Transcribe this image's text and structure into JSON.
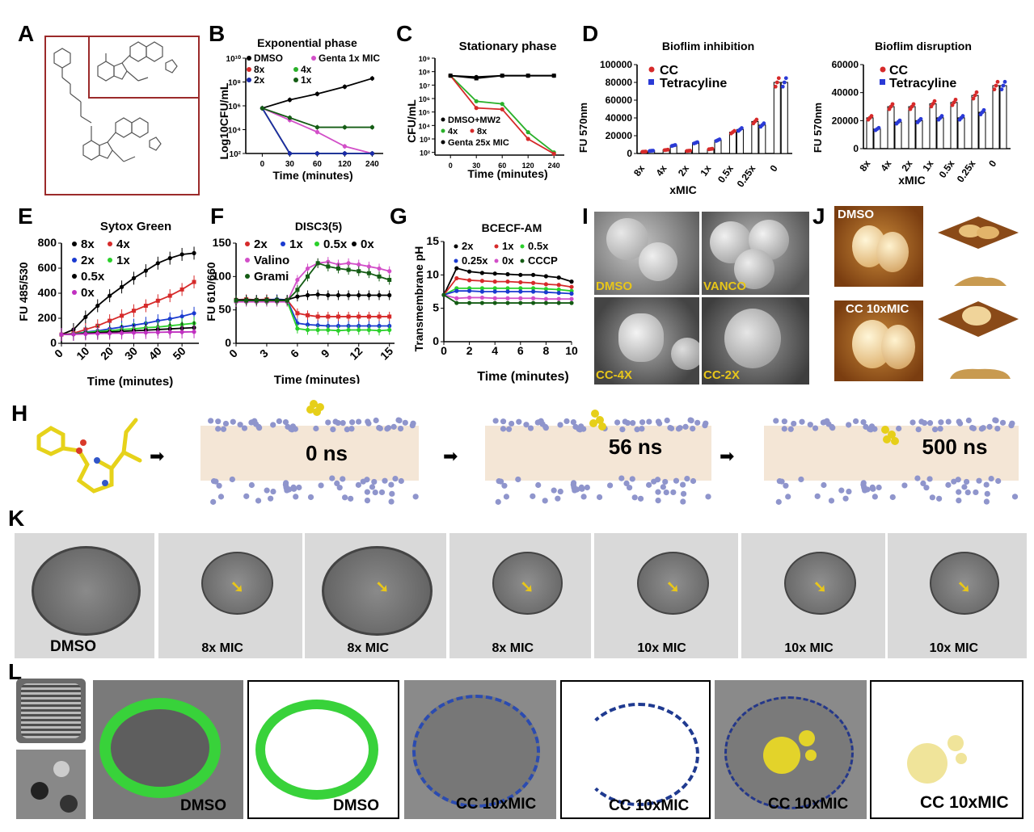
{
  "panels": {
    "A": "A",
    "B": "B",
    "C": "C",
    "D": "D",
    "E": "E",
    "F": "F",
    "G": "G",
    "H": "H",
    "I": "I",
    "J": "J",
    "K": "K",
    "L": "L"
  },
  "panelB": {
    "title": "Exponential phase",
    "ylabel": "Log10CFU/mL",
    "xlabel": "Time  (minutes)",
    "yticks": [
      "10¹⁰",
      "10⁸",
      "10⁶",
      "10⁴",
      "10²"
    ],
    "xticks": [
      "0",
      "30",
      "60",
      "120",
      "240"
    ],
    "legend": [
      "DMSO",
      "Genta 1x MIC",
      "8x",
      "4x",
      "2x",
      "1x"
    ]
  },
  "panelC": {
    "title": "Stationary phase",
    "ylabel": "CFU/mL",
    "xlabel": "Time  (minutes)",
    "yticks": [
      "10⁹",
      "10⁸",
      "10⁷",
      "10⁶",
      "10⁵",
      "10⁴",
      "10³",
      "10²"
    ],
    "xticks": [
      "0",
      "30",
      "60",
      "120",
      "240"
    ],
    "legend": [
      "DMSO+MW2",
      "4x",
      "8x",
      "Genta 25x MIC"
    ]
  },
  "panelD": {
    "title1": "Bioflim inhibition",
    "title2": "Bioflim disruption",
    "ylabel": "FU 570nm",
    "xlabel": "xMIC",
    "legend": [
      "CC",
      "Tetracyline"
    ],
    "yticks1": [
      "100000",
      "80000",
      "60000",
      "40000",
      "20000",
      "0"
    ],
    "yticks2": [
      "60000",
      "40000",
      "20000",
      "0"
    ],
    "xticks": [
      "8x",
      "4x",
      "2x",
      "1x",
      "0.5x",
      "0.25x",
      "0"
    ]
  },
  "panelE": {
    "title": "Sytox Green",
    "ylabel": "FU 485/530",
    "xlabel": "Time  (minutes)",
    "yticks": [
      "800",
      "600",
      "400",
      "200",
      "0"
    ],
    "xticks": [
      "0",
      "10",
      "20",
      "30",
      "40",
      "50"
    ],
    "legend": [
      "8x",
      "4x",
      "2x",
      "1x",
      "0.5x",
      "0x"
    ]
  },
  "panelF": {
    "title": "DISC3(5)",
    "ylabel": "FU 610/660",
    "xlabel": "Time  (minutes)",
    "yticks": [
      "150",
      "100",
      "50",
      "0"
    ],
    "xticks": [
      "0",
      "3",
      "6",
      "9",
      "12",
      "15"
    ],
    "legend": [
      "2x",
      "1x",
      "0.5x",
      "0x",
      "Valino",
      "Grami"
    ]
  },
  "panelG": {
    "title": "BCECF-AM",
    "ylabel": "Transmembrane pH",
    "xlabel": "Time (minutes)",
    "yticks": [
      "15",
      "10",
      "5",
      "0"
    ],
    "xticks": [
      "0",
      "2",
      "4",
      "6",
      "8",
      "10"
    ],
    "legend": [
      "2x",
      "1x",
      "0.5x",
      "0.25x",
      "0x",
      "CCCP"
    ]
  },
  "panelI": {
    "labels": [
      "DMSO",
      "VANCO",
      "CC-4X",
      "CC-2X"
    ]
  },
  "panelJ": {
    "labels": [
      "DMSO",
      "CC 10xMIC"
    ]
  },
  "panelH": {
    "times": [
      "0 ns",
      "56 ns",
      "500 ns"
    ]
  },
  "panelK": {
    "labels": [
      "DMSO",
      "8x MIC",
      "8x MIC",
      "8x MIC",
      "10x MIC",
      "10x MIC",
      "10x MIC"
    ]
  },
  "panelL": {
    "labels": [
      "DMSO",
      "DMSO",
      "CC 10xMIC",
      "CC 10xMIC",
      "CC 10xMIC",
      "CC 10xMIC"
    ]
  },
  "chart_data": [
    {
      "type": "line",
      "panel": "B",
      "title": "Exponential phase",
      "x": [
        0,
        30,
        60,
        120,
        240
      ],
      "series": [
        {
          "name": "DMSO",
          "values": [
            5.8,
            6.5,
            7.0,
            7.6,
            8.3
          ]
        },
        {
          "name": "Genta 1x MIC",
          "values": [
            5.8,
            4.8,
            3.8,
            2.6,
            2.0
          ]
        },
        {
          "name": "8x",
          "values": [
            5.8,
            2.0,
            2.0,
            2.0,
            2.0
          ]
        },
        {
          "name": "4x",
          "values": [
            5.8,
            2.0,
            2.0,
            2.0,
            2.0
          ]
        },
        {
          "name": "2x",
          "values": [
            5.8,
            2.0,
            2.0,
            2.0,
            2.0
          ]
        },
        {
          "name": "1x",
          "values": [
            5.8,
            5.0,
            4.2,
            4.2,
            4.2
          ]
        }
      ]
    },
    {
      "type": "line",
      "panel": "C",
      "title": "Stationary phase",
      "x": [
        0,
        30,
        60,
        120,
        240
      ],
      "series": [
        {
          "name": "DMSO+MW2",
          "values": [
            7.7,
            7.6,
            7.7,
            7.7,
            7.7
          ]
        },
        {
          "name": "4x",
          "values": [
            7.7,
            5.8,
            5.6,
            3.5,
            2.0
          ]
        },
        {
          "name": "8x",
          "values": [
            7.7,
            5.3,
            5.2,
            3.0,
            1.9
          ]
        },
        {
          "name": "Genta 25x MIC",
          "values": [
            7.7,
            7.5,
            7.7,
            7.7,
            7.7
          ]
        }
      ]
    },
    {
      "type": "bar",
      "panel": "D1",
      "title": "Bioflim inhibition",
      "categories": [
        "8x",
        "4x",
        "2x",
        "1x",
        "0.5x",
        "0.25x",
        "0"
      ],
      "series": [
        {
          "name": "CC",
          "values": [
            2000,
            4000,
            3000,
            5000,
            24000,
            36000,
            80000
          ]
        },
        {
          "name": "Tetracyline",
          "values": [
            3000,
            9000,
            12000,
            15000,
            27000,
            32000,
            80000
          ]
        }
      ],
      "ylim": [
        0,
        100000
      ]
    },
    {
      "type": "bar",
      "panel": "D2",
      "title": "Bioflim disruption",
      "categories": [
        "8x",
        "4x",
        "2x",
        "1x",
        "0.5x",
        "0.25x",
        "0"
      ],
      "series": [
        {
          "name": "CC",
          "values": [
            22000,
            30000,
            30000,
            32000,
            33000,
            38000,
            45000
          ]
        },
        {
          "name": "Tetracyline",
          "values": [
            14000,
            19000,
            20000,
            22000,
            22000,
            26000,
            45000
          ]
        }
      ],
      "ylim": [
        0,
        60000
      ]
    },
    {
      "type": "line",
      "panel": "E",
      "title": "Sytox Green",
      "x": [
        0,
        5,
        10,
        15,
        20,
        25,
        30,
        35,
        40,
        45,
        50,
        55
      ],
      "series": [
        {
          "name": "8x",
          "values": [
            70,
            110,
            210,
            300,
            380,
            450,
            520,
            580,
            640,
            680,
            710,
            720
          ]
        },
        {
          "name": "4x",
          "values": [
            70,
            80,
            110,
            140,
            180,
            220,
            260,
            300,
            340,
            380,
            430,
            490
          ]
        },
        {
          "name": "2x",
          "values": [
            70,
            75,
            90,
            100,
            115,
            130,
            145,
            160,
            180,
            195,
            215,
            240
          ]
        },
        {
          "name": "1x",
          "values": [
            70,
            75,
            85,
            95,
            100,
            110,
            115,
            125,
            130,
            140,
            150,
            160
          ]
        },
        {
          "name": "0.5x",
          "values": [
            70,
            72,
            80,
            85,
            90,
            95,
            100,
            105,
            110,
            115,
            120,
            125
          ]
        },
        {
          "name": "0x",
          "values": [
            70,
            72,
            75,
            78,
            80,
            82,
            85,
            86,
            88,
            90,
            90,
            92
          ]
        }
      ]
    },
    {
      "type": "line",
      "panel": "F",
      "title": "DISC3(5)",
      "x": [
        0,
        1,
        2,
        3,
        4,
        5,
        6,
        7,
        8,
        9,
        10,
        11,
        12,
        13,
        14,
        15
      ],
      "series": [
        {
          "name": "2x",
          "values": [
            65,
            66,
            65,
            66,
            65,
            65,
            45,
            42,
            40,
            40,
            40,
            40,
            40,
            40,
            40,
            40
          ]
        },
        {
          "name": "1x",
          "values": [
            65,
            65,
            65,
            65,
            66,
            65,
            30,
            28,
            27,
            26,
            26,
            26,
            26,
            26,
            26,
            26
          ]
        },
        {
          "name": "0.5x",
          "values": [
            63,
            63,
            63,
            63,
            63,
            63,
            22,
            20,
            20,
            20,
            19,
            20,
            20,
            20,
            19,
            20
          ]
        },
        {
          "name": "0x",
          "values": [
            65,
            65,
            65,
            65,
            65,
            65,
            70,
            72,
            73,
            72,
            72,
            72,
            72,
            72,
            72,
            72
          ]
        },
        {
          "name": "Valino",
          "values": [
            62,
            62,
            62,
            62,
            62,
            62,
            95,
            112,
            120,
            122,
            118,
            120,
            118,
            115,
            112,
            108
          ]
        },
        {
          "name": "Grami",
          "values": [
            64,
            64,
            64,
            64,
            64,
            64,
            80,
            100,
            120,
            115,
            112,
            110,
            108,
            105,
            100,
            95
          ]
        }
      ]
    },
    {
      "type": "line",
      "panel": "G",
      "title": "BCECF-AM",
      "x": [
        0,
        1,
        2,
        3,
        4,
        5,
        6,
        7,
        8,
        9,
        10
      ],
      "series": [
        {
          "name": "2x",
          "values": [
            7,
            11,
            10.5,
            10.3,
            10.2,
            10.1,
            10,
            10,
            9.8,
            9.6,
            9
          ]
        },
        {
          "name": "1x",
          "values": [
            7,
            9.5,
            9.2,
            9.1,
            9,
            9,
            8.9,
            8.8,
            8.6,
            8.5,
            8.2
          ]
        },
        {
          "name": "0.5x",
          "values": [
            7,
            8,
            8,
            8,
            8,
            8,
            8,
            8,
            7.9,
            7.8,
            7.6
          ]
        },
        {
          "name": "0.25x",
          "values": [
            7,
            7.6,
            7.6,
            7.5,
            7.5,
            7.5,
            7.5,
            7.5,
            7.4,
            7.3,
            7.2
          ]
        },
        {
          "name": "0x",
          "values": [
            7,
            6.5,
            6.6,
            6.6,
            6.5,
            6.5,
            6.5,
            6.5,
            6.4,
            6.4,
            6.4
          ]
        },
        {
          "name": "CCCP",
          "values": [
            7,
            5.8,
            5.8,
            5.8,
            5.8,
            5.8,
            5.8,
            5.8,
            5.8,
            5.8,
            5.8
          ]
        }
      ]
    }
  ]
}
